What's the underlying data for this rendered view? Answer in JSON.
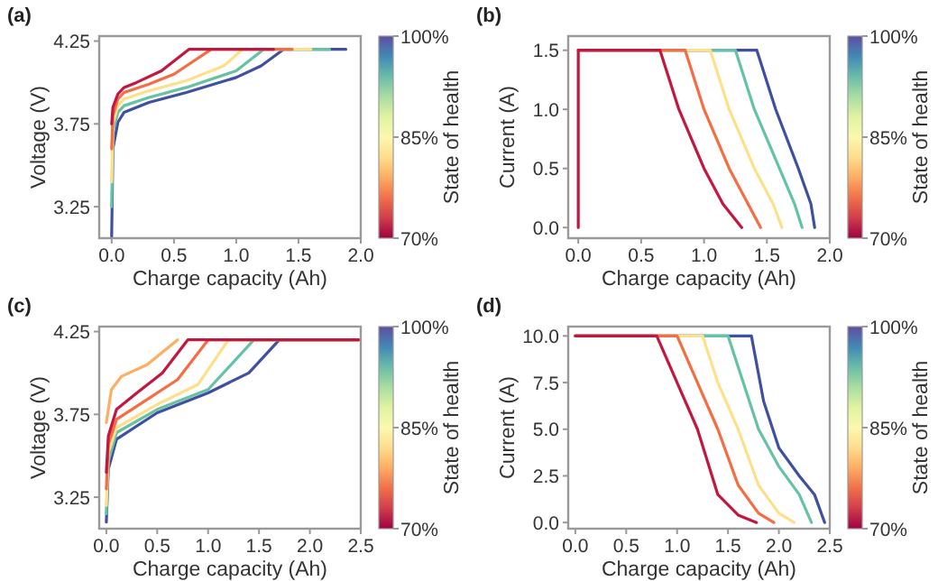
{
  "chart_data": [
    {
      "type": "line",
      "title": "(a)",
      "xlabel": "Charge capacity (Ah)",
      "ylabel": "Voltage (V)",
      "clabel": "State of health",
      "clim": [
        70,
        100
      ],
      "cticks": [
        {
          "value": 70,
          "label": "70%"
        },
        {
          "value": 85,
          "label": "85%"
        },
        {
          "value": 100,
          "label": "100%"
        }
      ],
      "xlim": [
        -0.1,
        2.0
      ],
      "xticks": [
        {
          "value": 0,
          "label": "0.0"
        },
        {
          "value": 0.5,
          "label": "0.5"
        },
        {
          "value": 1,
          "label": "1.0"
        },
        {
          "value": 1.5,
          "label": "1.5"
        },
        {
          "value": 2,
          "label": "2.0"
        }
      ],
      "ylim": [
        3.06,
        4.28
      ],
      "yticks": [
        3.25,
        3.75,
        4.25
      ],
      "series": [
        {
          "color": "#4050a0",
          "x": [
            0,
            0.01,
            0.05,
            0.1,
            0.3,
            0.6,
            1.0,
            1.2,
            1.38,
            1.88
          ],
          "values": [
            3.07,
            3.6,
            3.76,
            3.82,
            3.88,
            3.94,
            4.03,
            4.1,
            4.2,
            4.2
          ]
        },
        {
          "color": "#66c2a5",
          "x": [
            0,
            0.01,
            0.05,
            0.1,
            0.3,
            0.6,
            1.0,
            1.22,
            1.75
          ],
          "values": [
            3.25,
            3.7,
            3.82,
            3.86,
            3.91,
            3.97,
            4.07,
            4.2,
            4.2
          ]
        },
        {
          "color": "#fee08b",
          "x": [
            0,
            0.01,
            0.05,
            0.1,
            0.3,
            0.6,
            0.9,
            1.05,
            1.6
          ],
          "values": [
            3.4,
            3.75,
            3.86,
            3.9,
            3.95,
            4.01,
            4.1,
            4.2,
            4.2
          ]
        },
        {
          "color": "#f46d43",
          "x": [
            0,
            0.01,
            0.05,
            0.1,
            0.3,
            0.5,
            0.8,
            1.45
          ],
          "values": [
            3.6,
            3.8,
            3.9,
            3.94,
            3.99,
            4.05,
            4.2,
            4.2
          ]
        },
        {
          "color": "#c2183f",
          "x": [
            0,
            0.01,
            0.05,
            0.1,
            0.2,
            0.4,
            0.62,
            1.3
          ],
          "values": [
            3.75,
            3.85,
            3.93,
            3.97,
            4.0,
            4.07,
            4.2,
            4.2
          ]
        }
      ]
    },
    {
      "type": "line",
      "title": "(b)",
      "xlabel": "Charge capacity (Ah)",
      "ylabel": "Current (A)",
      "clabel": "State of health",
      "clim": [
        70,
        100
      ],
      "cticks": [
        {
          "value": 70,
          "label": "70%"
        },
        {
          "value": 85,
          "label": "85%"
        },
        {
          "value": 100,
          "label": "100%"
        }
      ],
      "xlim": [
        -0.08,
        2.0
      ],
      "xticks": [
        {
          "value": 0,
          "label": "0.0"
        },
        {
          "value": 0.5,
          "label": "0.5"
        },
        {
          "value": 1,
          "label": "1.0"
        },
        {
          "value": 1.5,
          "label": "1.5"
        },
        {
          "value": 2,
          "label": "2.0"
        }
      ],
      "ylim": [
        -0.09,
        1.62
      ],
      "yticks": [
        {
          "value": 0,
          "label": "0.0"
        },
        {
          "value": 0.5,
          "label": "0.5"
        },
        {
          "value": 1,
          "label": "1.0"
        },
        {
          "value": 1.5,
          "label": "1.5"
        }
      ],
      "series": [
        {
          "color": "#4050a0",
          "x": [
            0,
            1.42,
            1.57,
            1.75,
            1.85,
            1.88
          ],
          "values": [
            1.5,
            1.5,
            1.0,
            0.5,
            0.2,
            0
          ]
        },
        {
          "color": "#66c2a5",
          "x": [
            0,
            1.25,
            1.4,
            1.6,
            1.72,
            1.78
          ],
          "values": [
            1.5,
            1.5,
            1.0,
            0.5,
            0.2,
            0
          ]
        },
        {
          "color": "#fee08b",
          "x": [
            0,
            1.05,
            1.2,
            1.4,
            1.55,
            1.62
          ],
          "values": [
            1.5,
            1.5,
            1.0,
            0.5,
            0.2,
            0
          ]
        },
        {
          "color": "#f46d43",
          "x": [
            0,
            0.85,
            1.0,
            1.2,
            1.35,
            1.45
          ],
          "values": [
            1.5,
            1.5,
            1.0,
            0.5,
            0.2,
            0
          ]
        },
        {
          "color": "#c2183f",
          "x": [
            0,
            0,
            0.65,
            0.8,
            1.0,
            1.15,
            1.3
          ],
          "values": [
            0,
            1.5,
            1.5,
            1.0,
            0.5,
            0.2,
            0
          ]
        }
      ]
    },
    {
      "type": "line",
      "title": "(c)",
      "xlabel": "Charge capacity (Ah)",
      "ylabel": "Voltage (V)",
      "clabel": "State of health",
      "clim": [
        70,
        100
      ],
      "cticks": [
        {
          "value": 70,
          "label": "70%"
        },
        {
          "value": 85,
          "label": "85%"
        },
        {
          "value": 100,
          "label": "100%"
        }
      ],
      "xlim": [
        -0.07,
        2.5
      ],
      "xticks": [
        {
          "value": 0,
          "label": "0.0"
        },
        {
          "value": 0.5,
          "label": "0.5"
        },
        {
          "value": 1,
          "label": "1.0"
        },
        {
          "value": 1.5,
          "label": "1.5"
        },
        {
          "value": 2,
          "label": "2.0"
        },
        {
          "value": 2.5,
          "label": "2.5"
        }
      ],
      "ylim": [
        3.06,
        4.28
      ],
      "yticks": [
        3.25,
        3.75,
        4.25
      ],
      "series": [
        {
          "color": "#4050a0",
          "x": [
            0,
            0.02,
            0.1,
            0.5,
            1.0,
            1.4,
            1.7,
            2.48
          ],
          "values": [
            3.1,
            3.42,
            3.6,
            3.76,
            3.88,
            4.0,
            4.2,
            4.2
          ]
        },
        {
          "color": "#66c2a5",
          "x": [
            0,
            0.02,
            0.1,
            0.5,
            1.0,
            1.45,
            2.48
          ],
          "values": [
            3.15,
            3.47,
            3.64,
            3.78,
            3.9,
            4.2,
            4.2
          ]
        },
        {
          "color": "#fee08b",
          "x": [
            0,
            0.02,
            0.1,
            0.5,
            0.9,
            1.2,
            2.48
          ],
          "values": [
            3.2,
            3.52,
            3.67,
            3.81,
            3.93,
            4.2,
            4.2
          ]
        },
        {
          "color": "#f46d43",
          "x": [
            0,
            0.02,
            0.1,
            0.4,
            0.7,
            1.0,
            2.48
          ],
          "values": [
            3.3,
            3.57,
            3.72,
            3.84,
            3.96,
            4.2,
            4.2
          ]
        },
        {
          "color": "#c2183f",
          "x": [
            0,
            0.02,
            0.1,
            0.3,
            0.55,
            0.8,
            2.48
          ],
          "values": [
            3.4,
            3.62,
            3.78,
            3.88,
            4.0,
            4.2,
            4.2
          ]
        },
        {
          "color": "#fdae61",
          "x": [
            0,
            0.05,
            0.15,
            0.4,
            0.7
          ],
          "values": [
            3.7,
            3.9,
            3.98,
            4.05,
            4.2
          ]
        }
      ]
    },
    {
      "type": "line",
      "title": "(d)",
      "xlabel": "Charge capacity (Ah)",
      "ylabel": "Current (A)",
      "clabel": "State of health",
      "clim": [
        70,
        100
      ],
      "cticks": [
        {
          "value": 70,
          "label": "70%"
        },
        {
          "value": 85,
          "label": "85%"
        },
        {
          "value": 100,
          "label": "100%"
        }
      ],
      "xlim": [
        -0.07,
        2.5
      ],
      "xticks": [
        {
          "value": 0,
          "label": "0.0"
        },
        {
          "value": 0.5,
          "label": "0.5"
        },
        {
          "value": 1,
          "label": "1.0"
        },
        {
          "value": 1.5,
          "label": "1.5"
        },
        {
          "value": 2,
          "label": "2.0"
        },
        {
          "value": 2.5,
          "label": "2.5"
        }
      ],
      "ylim": [
        -0.33,
        10.5
      ],
      "yticks": [
        {
          "value": 0,
          "label": "0.0"
        },
        {
          "value": 2.5,
          "label": "2.5"
        },
        {
          "value": 5,
          "label": "5.0"
        },
        {
          "value": 7.5,
          "label": "7.5"
        },
        {
          "value": 10,
          "label": "10.0"
        }
      ],
      "series": [
        {
          "color": "#4050a0",
          "x": [
            0,
            1.73,
            1.85,
            2.0,
            2.2,
            2.35,
            2.45
          ],
          "values": [
            10,
            10,
            6.5,
            4,
            2.5,
            1.5,
            0
          ]
        },
        {
          "color": "#66c2a5",
          "x": [
            0,
            1.5,
            1.65,
            1.8,
            2.0,
            2.2,
            2.32
          ],
          "values": [
            10,
            10,
            7.5,
            5,
            3,
            1.5,
            0
          ]
        },
        {
          "color": "#fee08b",
          "x": [
            0,
            1.25,
            1.4,
            1.6,
            1.8,
            2.0,
            2.15
          ],
          "values": [
            10,
            10,
            7.5,
            5,
            2,
            0.5,
            0
          ]
        },
        {
          "color": "#f46d43",
          "x": [
            0,
            1.0,
            1.2,
            1.4,
            1.6,
            1.8,
            1.95
          ],
          "values": [
            10,
            10,
            7.5,
            5,
            2,
            0.5,
            0
          ]
        },
        {
          "color": "#c2183f",
          "x": [
            0,
            0.8,
            1.0,
            1.2,
            1.4,
            1.6,
            1.78
          ],
          "values": [
            10,
            10,
            7.5,
            5,
            1.5,
            0.4,
            0
          ]
        }
      ]
    }
  ]
}
